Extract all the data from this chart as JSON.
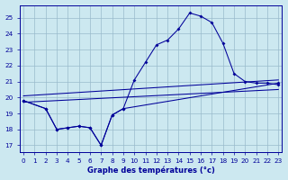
{
  "xlabel": "Graphe des températures (°c)",
  "bg_color": "#cce8f0",
  "line_color": "#000099",
  "grid_color": "#99bbcc",
  "ylim": [
    16.6,
    25.8
  ],
  "xlim": [
    -0.3,
    23.3
  ],
  "yticks": [
    17,
    18,
    19,
    20,
    21,
    22,
    23,
    24,
    25
  ],
  "xticks": [
    0,
    1,
    2,
    3,
    4,
    5,
    6,
    7,
    8,
    9,
    10,
    11,
    12,
    13,
    14,
    15,
    16,
    17,
    18,
    19,
    20,
    21,
    22,
    23
  ],
  "main_x": [
    0,
    2,
    3,
    4,
    5,
    6,
    7,
    8,
    9,
    10,
    11,
    12,
    13,
    14,
    15,
    16,
    17,
    18,
    19,
    20,
    21,
    22,
    23
  ],
  "main_y": [
    19.8,
    19.3,
    18.0,
    18.1,
    18.2,
    18.1,
    17.0,
    18.9,
    19.3,
    21.1,
    22.2,
    23.3,
    23.6,
    24.3,
    25.3,
    25.1,
    24.7,
    23.4,
    21.5,
    21.0,
    20.9,
    20.9,
    20.8
  ],
  "curve2_x": [
    0,
    2,
    3,
    4,
    5,
    6,
    7,
    8,
    9,
    23
  ],
  "curve2_y": [
    19.8,
    19.3,
    18.0,
    18.1,
    18.2,
    18.1,
    17.0,
    18.9,
    19.3,
    20.9
  ],
  "trend1_x": [
    0,
    23
  ],
  "trend1_y": [
    19.7,
    20.5
  ],
  "trend2_x": [
    0,
    23
  ],
  "trend2_y": [
    20.1,
    21.1
  ],
  "xlabel_fontsize": 6.0,
  "tick_fontsize": 5.2
}
